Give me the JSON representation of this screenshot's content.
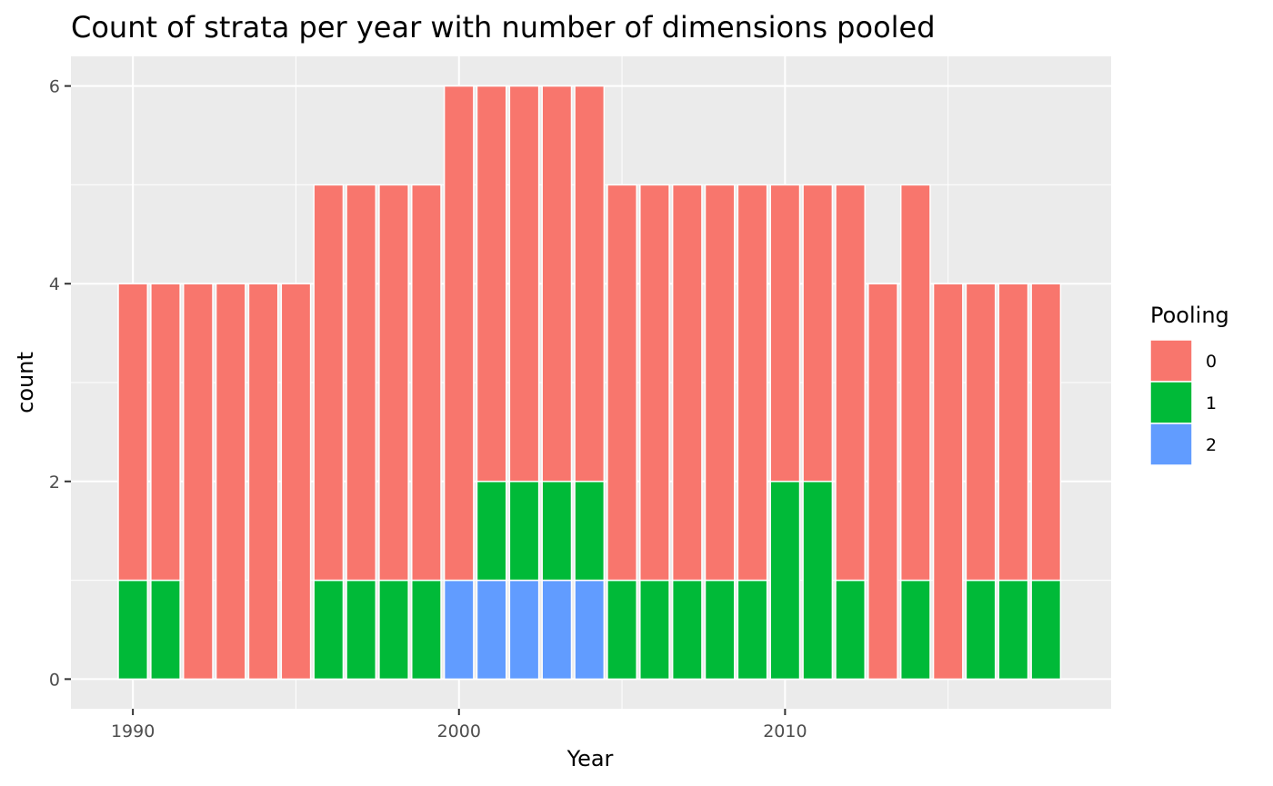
{
  "chart_data": {
    "type": "bar",
    "stacked": true,
    "title": "Count of strata per year with number of dimensions pooled",
    "xlabel": "Year",
    "ylabel": "count",
    "xlim": [
      1988.1,
      2020
    ],
    "ylim": [
      -0.3,
      6.3
    ],
    "x_ticks": [
      1990,
      2000,
      2010
    ],
    "y_ticks": [
      0,
      2,
      4,
      6
    ],
    "grid": true,
    "legend": {
      "title": "Pooling",
      "position": "right",
      "entries": [
        "0",
        "1",
        "2"
      ]
    },
    "colors": {
      "0": "#F8766D",
      "1": "#00BA38",
      "2": "#619CFF",
      "panel": "#EBEBEB",
      "grid": "#FFFFFF",
      "bar_outline": "#FFFFFF"
    },
    "x": [
      1990,
      1991,
      1992,
      1993,
      1994,
      1995,
      1996,
      1997,
      1998,
      1999,
      2000,
      2001,
      2002,
      2003,
      2004,
      2005,
      2006,
      2007,
      2008,
      2009,
      2010,
      2011,
      2012,
      2013,
      2014,
      2015,
      2016,
      2017,
      2018
    ],
    "series": [
      {
        "name": "0",
        "values": [
          3,
          3,
          4,
          4,
          4,
          4,
          4,
          4,
          4,
          4,
          5,
          4,
          4,
          4,
          4,
          4,
          4,
          4,
          4,
          4,
          3,
          3,
          4,
          4,
          4,
          4,
          3,
          3,
          3
        ]
      },
      {
        "name": "1",
        "values": [
          1,
          1,
          0,
          0,
          0,
          0,
          1,
          1,
          1,
          1,
          0,
          1,
          1,
          1,
          1,
          1,
          1,
          1,
          1,
          1,
          2,
          2,
          1,
          0,
          1,
          0,
          1,
          1,
          1
        ]
      },
      {
        "name": "2",
        "values": [
          0,
          0,
          0,
          0,
          0,
          0,
          0,
          0,
          0,
          0,
          1,
          1,
          1,
          1,
          1,
          0,
          0,
          0,
          0,
          0,
          0,
          0,
          0,
          0,
          0,
          0,
          0,
          0,
          0
        ]
      }
    ]
  }
}
